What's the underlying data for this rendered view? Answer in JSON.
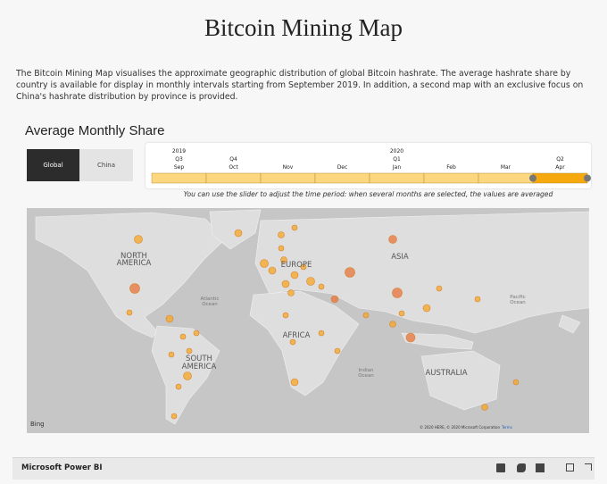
{
  "header": {
    "title": "Bitcoin Mining Map",
    "description": "The Bitcoin Mining Map visualises the approximate geographic distribution of global Bitcoin hashrate. The average hashrate share by country is available for display in monthly intervals starting from September 2019. In addition, a second map with an exclusive focus on China's hashrate distribution by province is provided."
  },
  "section": {
    "title": "Average Monthly Share",
    "buttons": [
      "Global",
      "China"
    ],
    "timeline": [
      {
        "year": "2019",
        "quarter": "Q3",
        "month": "Sep"
      },
      {
        "quarter": "Q4",
        "month": "Oct"
      },
      {
        "month": "Nov"
      },
      {
        "month": "Dec"
      },
      {
        "year": "2020",
        "quarter": "Q1",
        "month": "Jan"
      },
      {
        "month": "Feb"
      },
      {
        "month": "Mar"
      },
      {
        "quarter": "Q2",
        "month": "Apr"
      }
    ],
    "note": "You can use the slider to adjust the time period: when several months are selected, the values are averaged"
  },
  "map": {
    "labels": [
      "NORTH AMERICA",
      "EUROPE",
      "ASIA",
      "AFRICA",
      "SOUTH AMERICA",
      "AUSTRALIA"
    ],
    "oceans": [
      "Atlantic Ocean",
      "Pacific Ocean",
      "Indian Ocean"
    ],
    "provider": "Bing",
    "copyright": "© 2020 HERE, © 2020 Microsoft Corporation",
    "terms": "Terms"
  },
  "footer": {
    "brand": "Microsoft Power BI"
  }
}
